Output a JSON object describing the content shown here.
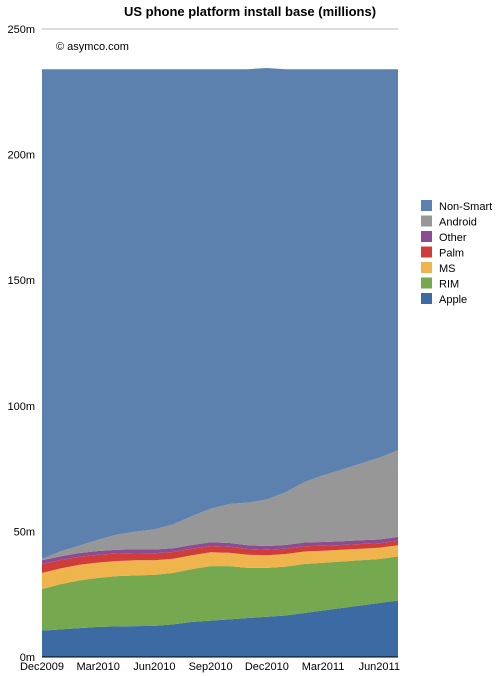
{
  "chart_data": {
    "type": "area",
    "stacked": true,
    "title": "US phone platform install base (millions)",
    "annotation": "© asymco.com",
    "xlabel": "",
    "ylabel": "",
    "ylim": [
      0,
      250
    ],
    "y_ticks": [
      "0m",
      "50m",
      "100m",
      "150m",
      "200m",
      "250m"
    ],
    "y_tick_values": [
      0,
      50,
      100,
      150,
      200,
      250
    ],
    "x": [
      "Dec2009",
      "Jan2010",
      "Feb2010",
      "Mar2010",
      "Apr2010",
      "May2010",
      "Jun2010",
      "Jul2010",
      "Aug2010",
      "Sep2010",
      "Oct2010",
      "Nov2010",
      "Dec2010",
      "Jan2011",
      "Feb2011",
      "Mar2011",
      "Apr2011",
      "May2011",
      "Jun2011",
      "Jul2011"
    ],
    "x_tick_labels": [
      "Dec2009",
      "Mar2010",
      "Jun2010",
      "Sep2010",
      "Dec2010",
      "Mar2011",
      "Jun2011"
    ],
    "legend_position": "right",
    "grid": false,
    "series": [
      {
        "name": "Apple",
        "color": "#3c6aa3",
        "values": [
          10.5,
          11.0,
          11.5,
          12.0,
          12.2,
          12.3,
          12.4,
          13.0,
          14.0,
          14.5,
          15.0,
          15.5,
          16.0,
          16.5,
          17.5,
          18.5,
          19.5,
          20.5,
          21.5,
          22.5
        ]
      },
      {
        "name": "RIM",
        "color": "#76a84f",
        "values": [
          16.5,
          18.0,
          19.0,
          19.5,
          20.0,
          20.2,
          20.3,
          20.5,
          21.0,
          21.7,
          21.2,
          20.0,
          19.5,
          19.5,
          19.5,
          19.0,
          18.5,
          18.0,
          17.5,
          17.5
        ]
      },
      {
        "name": "MS",
        "color": "#f0b44c",
        "values": [
          6.5,
          6.3,
          6.2,
          6.1,
          6.0,
          6.0,
          5.8,
          5.6,
          5.5,
          5.5,
          5.3,
          5.2,
          5.0,
          5.0,
          5.0,
          4.8,
          4.7,
          4.6,
          4.5,
          4.5
        ]
      },
      {
        "name": "Palm",
        "color": "#d03c3a",
        "values": [
          3.5,
          3.3,
          3.2,
          3.1,
          3.0,
          2.9,
          2.8,
          2.7,
          2.6,
          2.5,
          2.4,
          2.3,
          2.2,
          2.1,
          2.1,
          2.0,
          1.9,
          1.9,
          1.8,
          1.8
        ]
      },
      {
        "name": "Other",
        "color": "#8b4c93",
        "values": [
          1.5,
          1.5,
          1.5,
          1.5,
          1.5,
          1.5,
          1.5,
          1.5,
          1.5,
          1.5,
          1.5,
          1.5,
          1.5,
          1.5,
          1.5,
          1.5,
          1.5,
          1.5,
          1.5,
          1.5
        ]
      },
      {
        "name": "Android",
        "color": "#979797",
        "values": [
          0.5,
          2.0,
          3.0,
          4.5,
          6.0,
          7.0,
          8.0,
          9.5,
          11.5,
          13.3,
          15.5,
          17.0,
          18.5,
          21.0,
          24.0,
          26.5,
          28.5,
          30.5,
          32.5,
          34.5
        ]
      },
      {
        "name": "Non-Smart",
        "color": "#5d81ae",
        "values": [
          195.0,
          191.9,
          189.6,
          187.3,
          185.3,
          184.1,
          183.2,
          181.2,
          177.9,
          175.0,
          173.1,
          172.5,
          171.8,
          168.4,
          164.4,
          161.7,
          159.4,
          157.0,
          154.7,
          151.7
        ]
      }
    ]
  }
}
